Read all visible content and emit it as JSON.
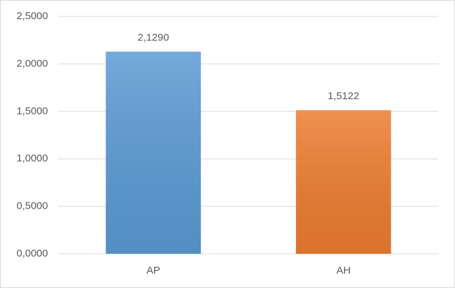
{
  "chart_data": {
    "type": "bar",
    "categories": [
      "AP",
      "AH"
    ],
    "values": [
      2.129,
      1.5122
    ],
    "value_labels": [
      "2,1290",
      "1,5122"
    ],
    "colors": [
      "#5b9bd5",
      "#ed7d31"
    ],
    "ylim": [
      0,
      2.5
    ],
    "yticks": [
      {
        "value": 0,
        "label": "0,0000"
      },
      {
        "value": 0.5,
        "label": "0,5000"
      },
      {
        "value": 1,
        "label": "1,0000"
      },
      {
        "value": 1.5,
        "label": "1,5000"
      },
      {
        "value": 2,
        "label": "2,0000"
      },
      {
        "value": 2.5,
        "label": "2,5000"
      }
    ],
    "grid": true
  }
}
